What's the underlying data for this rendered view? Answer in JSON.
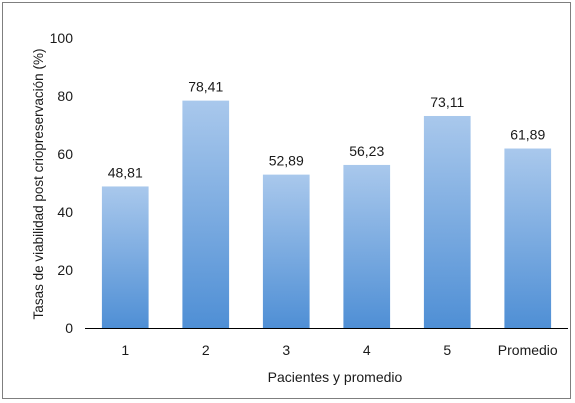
{
  "chart_data": {
    "type": "bar",
    "categories": [
      "1",
      "2",
      "3",
      "4",
      "5",
      "Promedio"
    ],
    "values": [
      48.81,
      78.41,
      52.89,
      56.23,
      73.11,
      61.89
    ],
    "value_labels": [
      "48,81",
      "78,41",
      "52,89",
      "56,23",
      "73,11",
      "61,89"
    ],
    "title": "",
    "xlabel": "Pacientes y promedio",
    "ylabel": "Tasas de viabilidad post criopreservación (%)",
    "ylim": [
      0,
      100
    ],
    "yticks": [
      0,
      20,
      40,
      60,
      80,
      100
    ],
    "grid": false,
    "legend": "none",
    "colors": {
      "bar_top": "#a9c8ec",
      "bar_bottom": "#4f8fd5",
      "axis": "#000000",
      "frame": "#7f7f7f"
    }
  }
}
